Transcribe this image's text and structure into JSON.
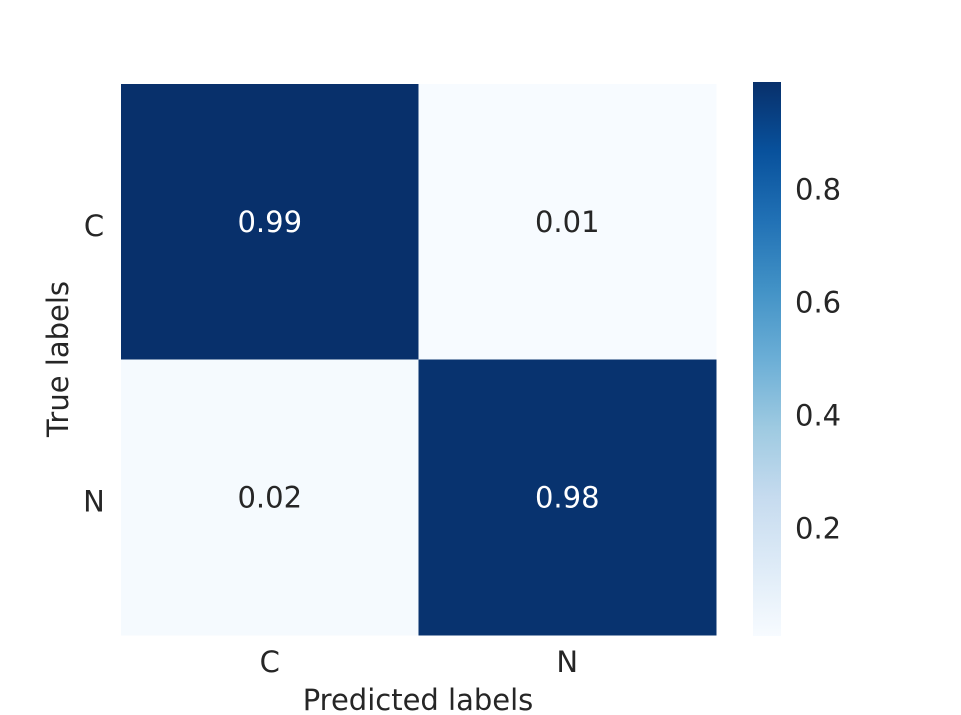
{
  "chart_data": {
    "type": "heatmap",
    "title": "",
    "xlabel": "Predicted labels",
    "ylabel": "True labels",
    "x_categories": [
      "C",
      "N"
    ],
    "y_categories": [
      "C",
      "N"
    ],
    "values": [
      [
        0.99,
        0.01
      ],
      [
        0.02,
        0.98
      ]
    ],
    "annotations": [
      [
        "0.99",
        "0.01"
      ],
      [
        "0.02",
        "0.98"
      ]
    ],
    "colormap": "Blues",
    "colorbar": {
      "range": [
        0.01,
        0.99
      ],
      "ticks": [
        0.2,
        0.4,
        0.6,
        0.8
      ],
      "tick_labels": [
        "0.2",
        "0.4",
        "0.6",
        "0.8"
      ]
    },
    "grid": false,
    "colors": {
      "low": "#f7fbff",
      "high": "#08306b",
      "annotation_dark_bg": "#ffffff",
      "annotation_light_bg": "#262626"
    }
  }
}
